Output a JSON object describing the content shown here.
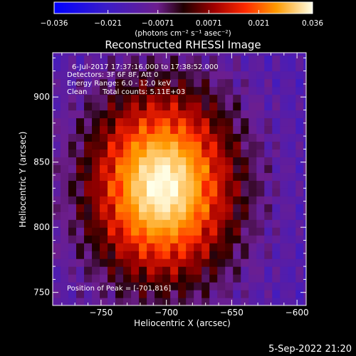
{
  "chart_data": {
    "type": "heatmap",
    "title": "Reconstructed RHESSI Image",
    "xlabel": "Heliocentric X (arcsec)",
    "ylabel": "Heliocentric Y (arcsec)",
    "xlim": [
      -787,
      -593
    ],
    "ylim": [
      740,
      934
    ],
    "xticks": [
      -750,
      -700,
      -650,
      -600
    ],
    "yticks": [
      750,
      800,
      850,
      900
    ],
    "xtick_labels": [
      "−750",
      "−700",
      "−650",
      "−600"
    ],
    "ytick_labels": [
      "750",
      "800",
      "850",
      "900"
    ],
    "colorbar": {
      "range": [
        -0.036,
        0.036
      ],
      "ticks": [
        -0.036,
        -0.021,
        -0.0071,
        0.0071,
        0.021,
        0.036
      ],
      "tick_labels": [
        "−0.036",
        "−0.021",
        "−0.0071",
        "0.0071",
        "0.021",
        "0.036"
      ],
      "unit_label": "(photons cm⁻² s⁻¹ asec⁻²)"
    },
    "source": {
      "peak_x": -701,
      "peak_y": 816,
      "center_x": -703,
      "center_y": 832,
      "sigma_x": 40,
      "sigma_y": 52,
      "peak_value": 0.036,
      "background_value": -0.015,
      "pixel_size": 6
    },
    "annotations": {
      "line1": "6-Jul-2017 17:37:16.000 to 17:38:52.000",
      "line2": "Detectors: 3F 6F 8F, Att 0",
      "line3": "Energy Range: 6.0 - 12.0 keV",
      "line4_a": "Clean",
      "line4_b": "Total counts: 5.11E+03",
      "peak_label": "Position of Peak = [-701,816]"
    },
    "footer_date": "5-Sep-2022 21:20"
  }
}
